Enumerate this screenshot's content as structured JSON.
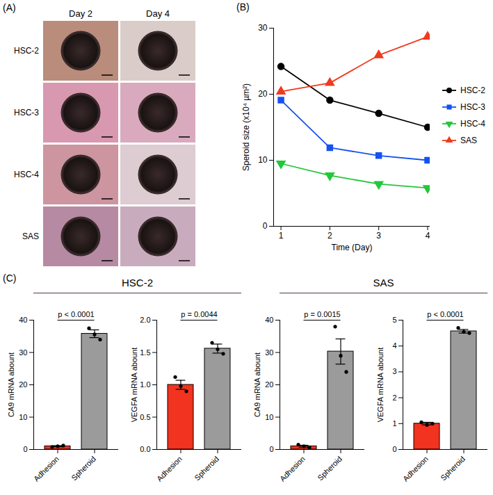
{
  "panel_A": {
    "panel": "(A)",
    "columns": [
      "Day 2",
      "Day 4"
    ],
    "rows": [
      "HSC-2",
      "HSC-3",
      "HSC-4",
      "SAS"
    ]
  },
  "chart_data": [
    {
      "panel": "(B)",
      "type": "line",
      "x_label": "Time (Day)",
      "y_label": "Speroid size (x10⁴ µm²)",
      "x": [
        1,
        2,
        3,
        4
      ],
      "xlim": [
        0.85,
        4.05
      ],
      "xticks": [
        1,
        2,
        3,
        4
      ],
      "ylim": [
        0,
        30
      ],
      "yticks": [
        0,
        10,
        20,
        30
      ],
      "legend": "right",
      "series": [
        {
          "name": "HSC-2",
          "color": "#000000",
          "marker": "circle",
          "values": [
            24.2,
            19.1,
            17.1,
            15.0
          ]
        },
        {
          "name": "HSC-3",
          "color": "#1452f0",
          "marker": "square",
          "values": [
            19.1,
            11.9,
            10.7,
            10.0
          ]
        },
        {
          "name": "HSC-4",
          "color": "#22c73a",
          "marker": "triangle-down",
          "values": [
            9.5,
            7.7,
            6.4,
            5.8
          ]
        },
        {
          "name": "SAS",
          "color": "#f03a1e",
          "marker": "triangle-up",
          "values": [
            20.4,
            21.7,
            25.9,
            28.7
          ]
        }
      ]
    },
    {
      "panel": "(C)",
      "group": "HSC-2",
      "type": "bar",
      "y_label": "CA9 mRNA abount",
      "categories": [
        "Adhesion",
        "Spheroid"
      ],
      "values": [
        1.0,
        35.8
      ],
      "errors": [
        0.15,
        1.2
      ],
      "points": [
        [
          0.8,
          1.0,
          1.2
        ],
        [
          37.5,
          35.6,
          34.0
        ]
      ],
      "colors": [
        "#f2331f",
        "#9b9b9b"
      ],
      "annotation": "p < 0.0001",
      "ylim": [
        0,
        40
      ],
      "yticks": [
        0,
        10,
        20,
        30,
        40
      ]
    },
    {
      "type": "bar",
      "y_label": "VEGFA mRNA abount",
      "categories": [
        "Adhesion",
        "Spheroid"
      ],
      "values": [
        1.0,
        1.56
      ],
      "errors": [
        0.07,
        0.07
      ],
      "points": [
        [
          1.12,
          0.98,
          0.9
        ],
        [
          1.65,
          1.55,
          1.48
        ]
      ],
      "colors": [
        "#f2331f",
        "#9b9b9b"
      ],
      "annotation": "p = 0.0044",
      "ylim": [
        0,
        2
      ],
      "yticks": [
        {
          "value": 0,
          "label": "0.0"
        },
        0.5,
        {
          "value": 1,
          "label": "1.0"
        },
        1.5,
        {
          "value": 2,
          "label": "2.0"
        }
      ]
    },
    {
      "group": "SAS",
      "type": "bar",
      "y_label": "CA9 mRNA abount",
      "categories": [
        "Adhesion",
        "Spheroid"
      ],
      "values": [
        1.0,
        30.3
      ],
      "errors": [
        0.3,
        3.9
      ],
      "points": [
        [
          1.5,
          1.0,
          0.6
        ],
        [
          38.0,
          29.0,
          24.0
        ]
      ],
      "colors": [
        "#f2331f",
        "#9b9b9b"
      ],
      "annotation": "p = 0.0015",
      "ylim": [
        0,
        40
      ],
      "yticks": [
        0,
        10,
        20,
        30,
        40
      ]
    },
    {
      "type": "bar",
      "y_label": "VEGFA mRNA abount",
      "categories": [
        "Adhesion",
        "Spheroid"
      ],
      "values": [
        1.0,
        4.57
      ],
      "errors": [
        0.05,
        0.07
      ],
      "points": [
        [
          1.05,
          0.95,
          1.0
        ],
        [
          4.7,
          4.55,
          4.5
        ]
      ],
      "colors": [
        "#f2331f",
        "#9b9b9b"
      ],
      "annotation": "p < 0.0001",
      "ylim": [
        0,
        5
      ],
      "yticks": [
        0,
        1,
        2,
        3,
        4,
        5
      ]
    }
  ]
}
